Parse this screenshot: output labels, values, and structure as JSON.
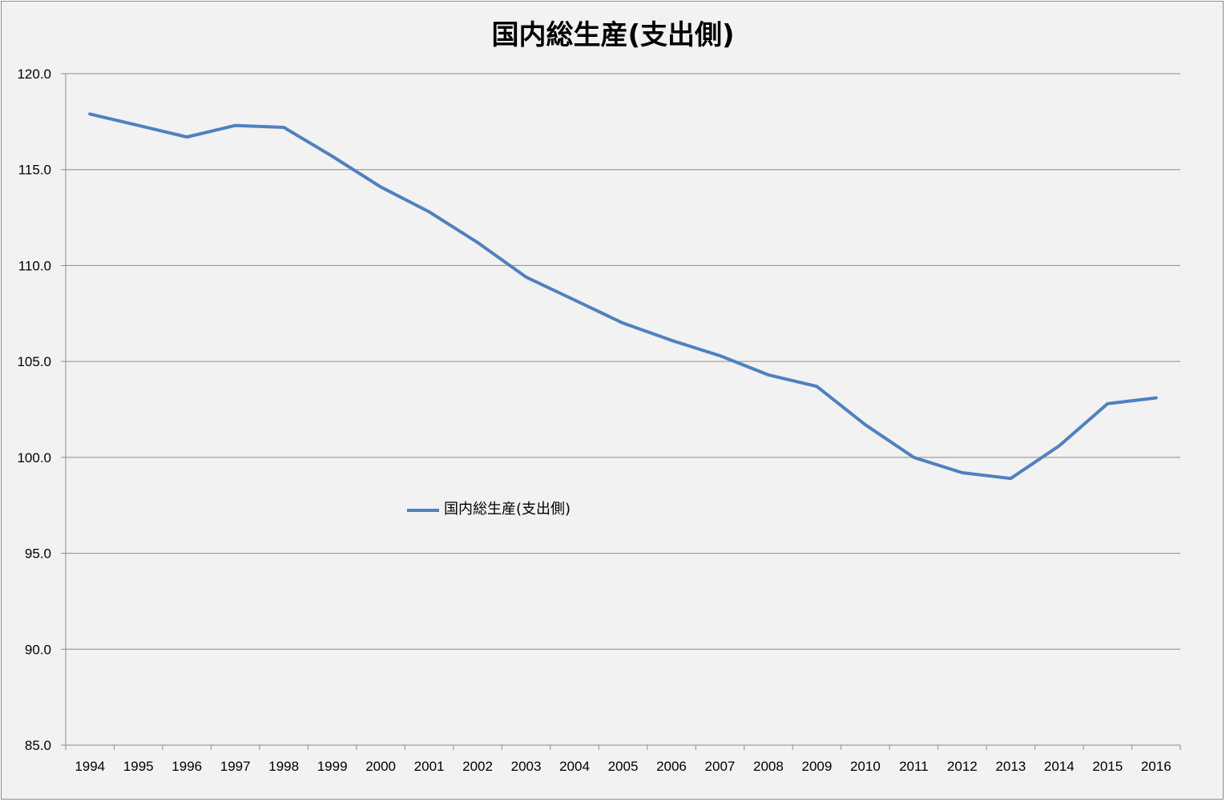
{
  "chart_data": {
    "type": "line",
    "title": "国内総生産(支出側)",
    "xlabel": "",
    "ylabel": "",
    "categories": [
      "1994",
      "1995",
      "1996",
      "1997",
      "1998",
      "1999",
      "2000",
      "2001",
      "2002",
      "2003",
      "2004",
      "2005",
      "2006",
      "2007",
      "2008",
      "2009",
      "2010",
      "2011",
      "2012",
      "2013",
      "2014",
      "2015",
      "2016"
    ],
    "series": [
      {
        "name": "国内総生産(支出側)",
        "color": "#4f81bd",
        "values": [
          117.9,
          117.3,
          116.7,
          117.3,
          117.2,
          115.7,
          114.1,
          112.8,
          111.2,
          109.4,
          108.2,
          107.0,
          106.1,
          105.3,
          104.3,
          103.7,
          101.7,
          100.0,
          99.2,
          98.9,
          100.6,
          102.8,
          103.1
        ]
      }
    ],
    "ylim": [
      85.0,
      120.0
    ],
    "yticks": [
      "120.0",
      "115.0",
      "110.0",
      "105.0",
      "100.0",
      "95.0",
      "90.0",
      "85.0"
    ],
    "grid": true,
    "legend": "inside-center-left"
  }
}
